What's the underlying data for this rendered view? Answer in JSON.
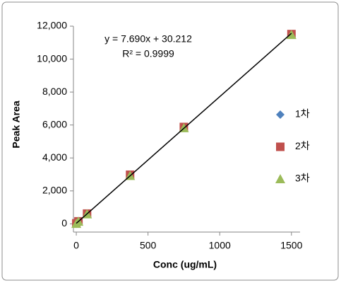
{
  "chart_data": {
    "type": "scatter",
    "x_label": "Conc (ug/mL)",
    "y_label": "Peak Area",
    "x": [
      0,
      15,
      75,
      375,
      750,
      1500
    ],
    "series": [
      {
        "name": "1차",
        "color": "#4f81bd",
        "marker": "diamond",
        "values": [
          0,
          150,
          600,
          2950,
          5850,
          11500
        ]
      },
      {
        "name": "2차",
        "color": "#c0504d",
        "marker": "square",
        "values": [
          30,
          150,
          620,
          2980,
          5880,
          11520
        ]
      },
      {
        "name": "3차",
        "color": "#9bbb59",
        "marker": "triangle",
        "values": [
          10,
          140,
          590,
          2920,
          5820,
          11480
        ]
      }
    ],
    "trendline": {
      "slope": 7.69,
      "intercept": 30.212,
      "label": "y = 7.690x + 30.212",
      "r2_label": "R² = 0.9999",
      "color": "#000000"
    },
    "xlim": [
      -20,
      1560
    ],
    "xticks": [
      0,
      500,
      1000,
      1500
    ],
    "ylim": [
      -500,
      12000
    ],
    "yticks": [
      {
        "value": 0,
        "label": "0"
      },
      {
        "value": 2000,
        "label": "2,000"
      },
      {
        "value": 4000,
        "label": "4,000"
      },
      {
        "value": 6000,
        "label": "6,000"
      },
      {
        "value": 8000,
        "label": "8,000"
      },
      {
        "value": 10000,
        "label": "10,000"
      },
      {
        "value": 12000,
        "label": "12,000"
      }
    ],
    "legend": "right"
  }
}
